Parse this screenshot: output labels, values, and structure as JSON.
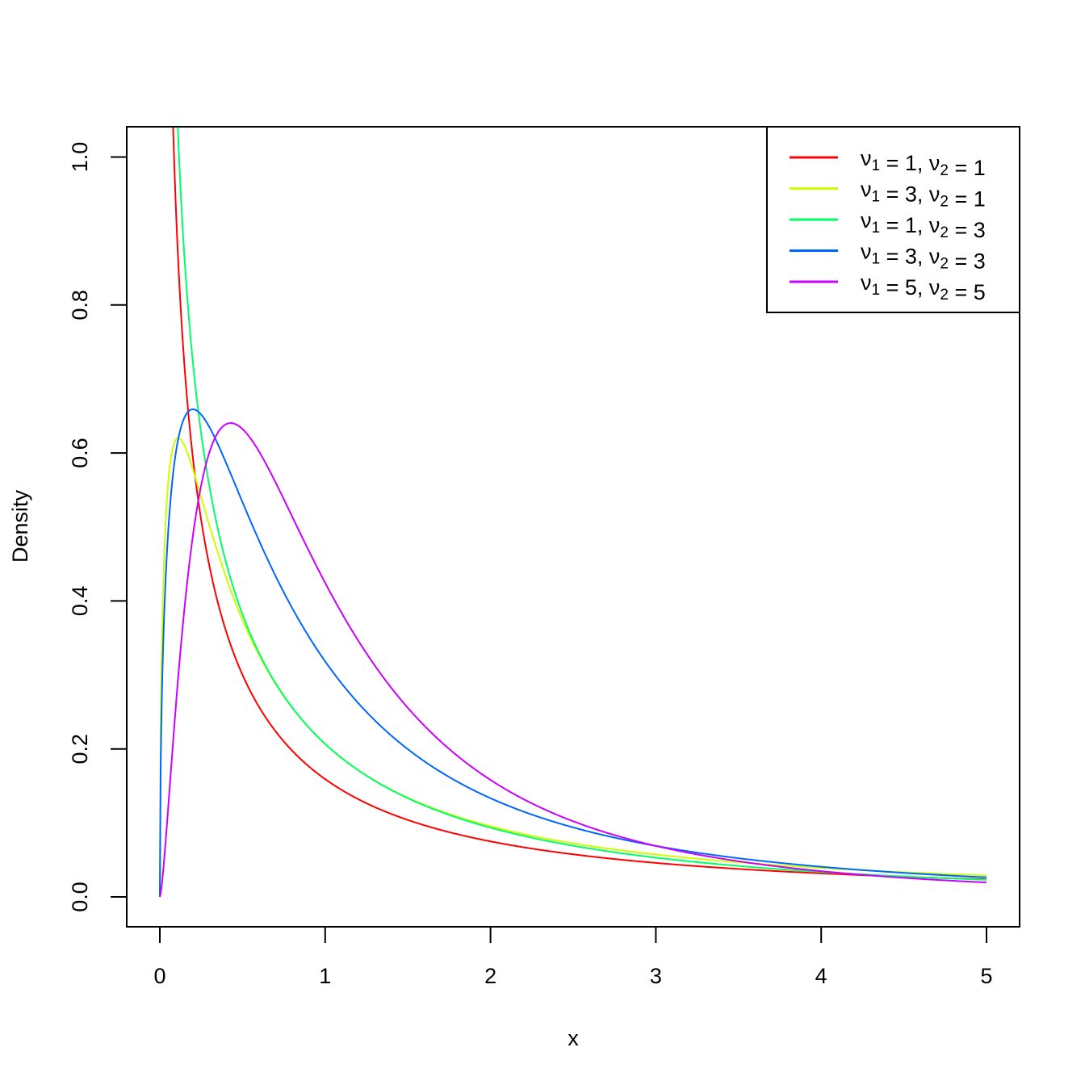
{
  "chart_data": {
    "type": "line",
    "title": "",
    "xlabel": "x",
    "ylabel": "Density",
    "xlim": [
      0,
      5
    ],
    "ylim": [
      0,
      1.0
    ],
    "x_ticks": [
      "0",
      "1",
      "2",
      "3",
      "4",
      "5"
    ],
    "y_ticks": [
      "0.0",
      "0.2",
      "0.4",
      "0.6",
      "0.8",
      "1.0"
    ],
    "grid": false,
    "legend_position": "top-right",
    "x": [
      0.25,
      0.5,
      1,
      2,
      3,
      4,
      5
    ],
    "series": [
      {
        "name": "ν1 = 1,  ν2 = 1",
        "d1": 1,
        "d2": 1,
        "color": "#FF0000",
        "values": [
          0.509,
          0.3,
          0.159,
          0.075,
          0.046,
          0.032,
          0.024
        ]
      },
      {
        "name": "ν1 = 3,  ν2 = 1",
        "d1": 3,
        "d2": 1,
        "color": "#CCFF00",
        "values": [
          0.552,
          0.412,
          0.22,
          0.091,
          0.053,
          0.036,
          0.027
        ]
      },
      {
        "name": "ν1 = 1,  ν2 = 3",
        "d1": 1,
        "d2": 3,
        "color": "#00FF66",
        "values": [
          0.647,
          0.413,
          0.221,
          0.093,
          0.05,
          0.03,
          0.02
        ]
      },
      {
        "name": "ν1 = 3,  ν2 = 3",
        "d1": 3,
        "d2": 3,
        "color": "#0066FF",
        "values": [
          0.639,
          0.551,
          0.318,
          0.132,
          0.068,
          0.04,
          0.026
        ]
      },
      {
        "name": "ν1 = 5,  ν2 = 5",
        "d1": 5,
        "d2": 5,
        "color": "#CC00FF",
        "values": [
          0.529,
          0.632,
          0.442,
          0.159,
          0.067,
          0.032,
          0.017
        ]
      }
    ]
  },
  "legend": [
    {
      "nu1": "1",
      "nu2": "1",
      "color": "#FF0000"
    },
    {
      "nu1": "3",
      "nu2": "1",
      "color": "#CCFF00"
    },
    {
      "nu1": "1",
      "nu2": "3",
      "color": "#00FF66"
    },
    {
      "nu1": "3",
      "nu2": "3",
      "color": "#0066FF"
    },
    {
      "nu1": "5",
      "nu2": "5",
      "color": "#CC00FF"
    }
  ]
}
